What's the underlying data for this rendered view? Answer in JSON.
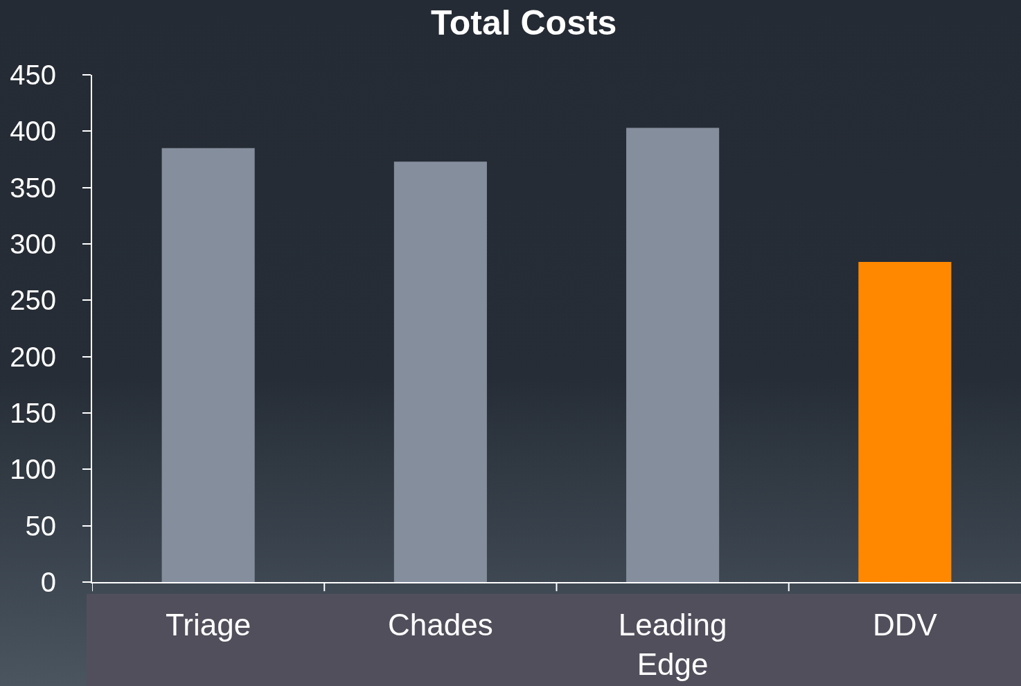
{
  "chart_data": {
    "type": "bar",
    "title": "Total Costs",
    "categories": [
      "Triage",
      "Chades",
      "Leading Edge",
      "DDV"
    ],
    "values": [
      385,
      373,
      403,
      284
    ],
    "colors": [
      "#858e9c",
      "#858e9c",
      "#858e9c",
      "#ff8800"
    ],
    "ylim": [
      0,
      450
    ],
    "yticks": [
      0,
      50,
      100,
      150,
      200,
      250,
      300,
      350,
      400,
      450
    ],
    "grid": false
  }
}
